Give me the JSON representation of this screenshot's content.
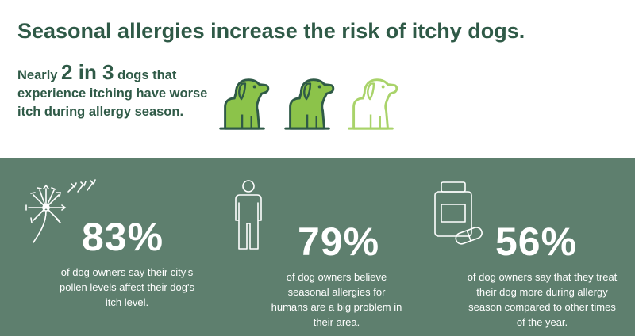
{
  "header": {
    "title": "Seasonal allergies increase the risk of itchy dogs.",
    "lead_prefix": "Nearly ",
    "lead_highlight": "2 in 3",
    "lead_suffix": " dogs that experience itching have worse itch during allergy season."
  },
  "dogs": {
    "filled_color": "#8cc34a",
    "outline_color": "#2f5a47",
    "empty_outline_color": "#a9d36a",
    "filled_count": 2,
    "total_count": 3
  },
  "stats": [
    {
      "value": "83%",
      "text": "of dog owners say their city's pollen levels affect their dog's itch level.",
      "icon": "dandelion-icon"
    },
    {
      "value": "79%",
      "text": "of dog owners believe seasonal allergies for humans are a big problem in their area.",
      "icon": "person-icon"
    },
    {
      "value": "56%",
      "text": "of dog owners say that they treat their dog more during allergy season compared to other times of the year.",
      "icon": "medicine-bottle-icon"
    }
  ],
  "colors": {
    "heading_green": "#2f5a47",
    "panel_green": "#5e7f6e",
    "text_on_panel": "#ffffff"
  }
}
